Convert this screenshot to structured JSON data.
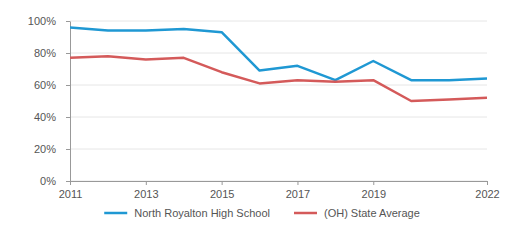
{
  "chart_data": {
    "type": "line",
    "x": [
      2011,
      2012,
      2013,
      2014,
      2015,
      2016,
      2017,
      2018,
      2019,
      2020,
      2021,
      2022
    ],
    "xlim": [
      2011,
      2022
    ],
    "xticks": [
      2011,
      2013,
      2015,
      2017,
      2019,
      2022
    ],
    "ylim": [
      0,
      100
    ],
    "yticks": [
      {
        "value": 0,
        "label": "0%"
      },
      {
        "value": 20,
        "label": "20%"
      },
      {
        "value": 40,
        "label": "40%"
      },
      {
        "value": 60,
        "label": "60%"
      },
      {
        "value": 80,
        "label": "80%"
      },
      {
        "value": 100,
        "label": "100%"
      }
    ],
    "grid": true,
    "legend": "bottom",
    "series": [
      {
        "name": "North Royalton High School",
        "color": "#1f98d3",
        "values": [
          96,
          94,
          94,
          95,
          93,
          69,
          72,
          63,
          75,
          63,
          63,
          64
        ]
      },
      {
        "name": "(OH) State Average",
        "color": "#d45a5a",
        "values": [
          77,
          78,
          76,
          77,
          68,
          61,
          63,
          62,
          63,
          50,
          51,
          52
        ]
      }
    ]
  }
}
